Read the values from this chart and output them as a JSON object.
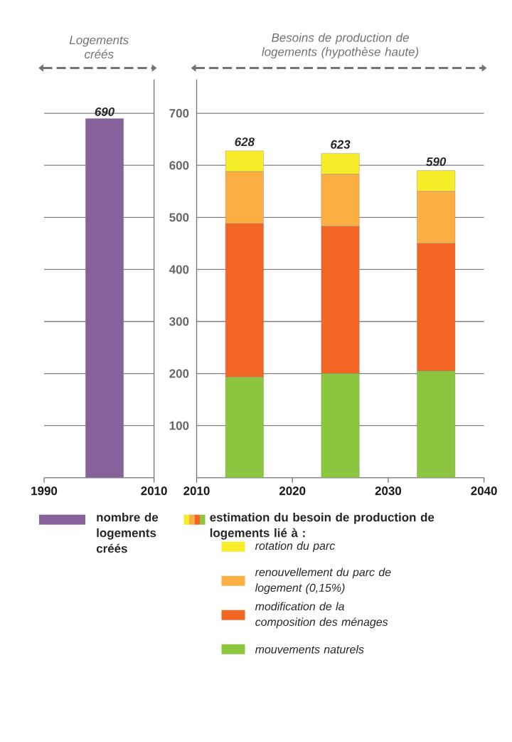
{
  "chart_data": [
    {
      "type": "bar",
      "title": "Logements créés",
      "x": [
        2001
      ],
      "series": [
        {
          "name": "nombre de logements créés",
          "color": "#86629a",
          "values": [
            690
          ]
        }
      ],
      "data_labels": true,
      "xlim": [
        1990,
        2010
      ],
      "xticks": [
        1990,
        2010
      ],
      "ylim": [
        0,
        765
      ],
      "yticks": [
        100,
        200,
        300,
        400,
        500,
        600,
        700
      ],
      "grid": "y",
      "tick_labels": "x",
      "legend": "bottom"
    },
    {
      "type": "bar",
      "title": "Besoins de production de logements (hypothèse haute)",
      "legend_title": "estimation du besoin de production de logements lié à :",
      "x": [
        2015,
        2025,
        2035
      ],
      "stacked": true,
      "series": [
        {
          "name": "mouvements naturels",
          "color": "#8cc63f",
          "values": [
            193,
            200,
            205
          ]
        },
        {
          "name": "modification de la composition des ménages",
          "color": "#f26522",
          "values": [
            295,
            283,
            245
          ]
        },
        {
          "name": "renouvellement du parc de logement (0,15%)",
          "color": "#fbae42",
          "values": [
            100,
            100,
            100
          ]
        },
        {
          "name": "rotation du parc",
          "color": "#f7ec2a",
          "values": [
            40,
            40,
            40
          ]
        }
      ],
      "totals": [
        "628",
        "623",
        "590"
      ],
      "xlim": [
        2010,
        2040
      ],
      "xticks": [
        2010,
        2020,
        2030,
        2040
      ],
      "ylim": [
        0,
        765
      ],
      "yticks": [
        100,
        200,
        300,
        400,
        500,
        600,
        700
      ],
      "grid": "y",
      "legend": "bottom"
    }
  ]
}
